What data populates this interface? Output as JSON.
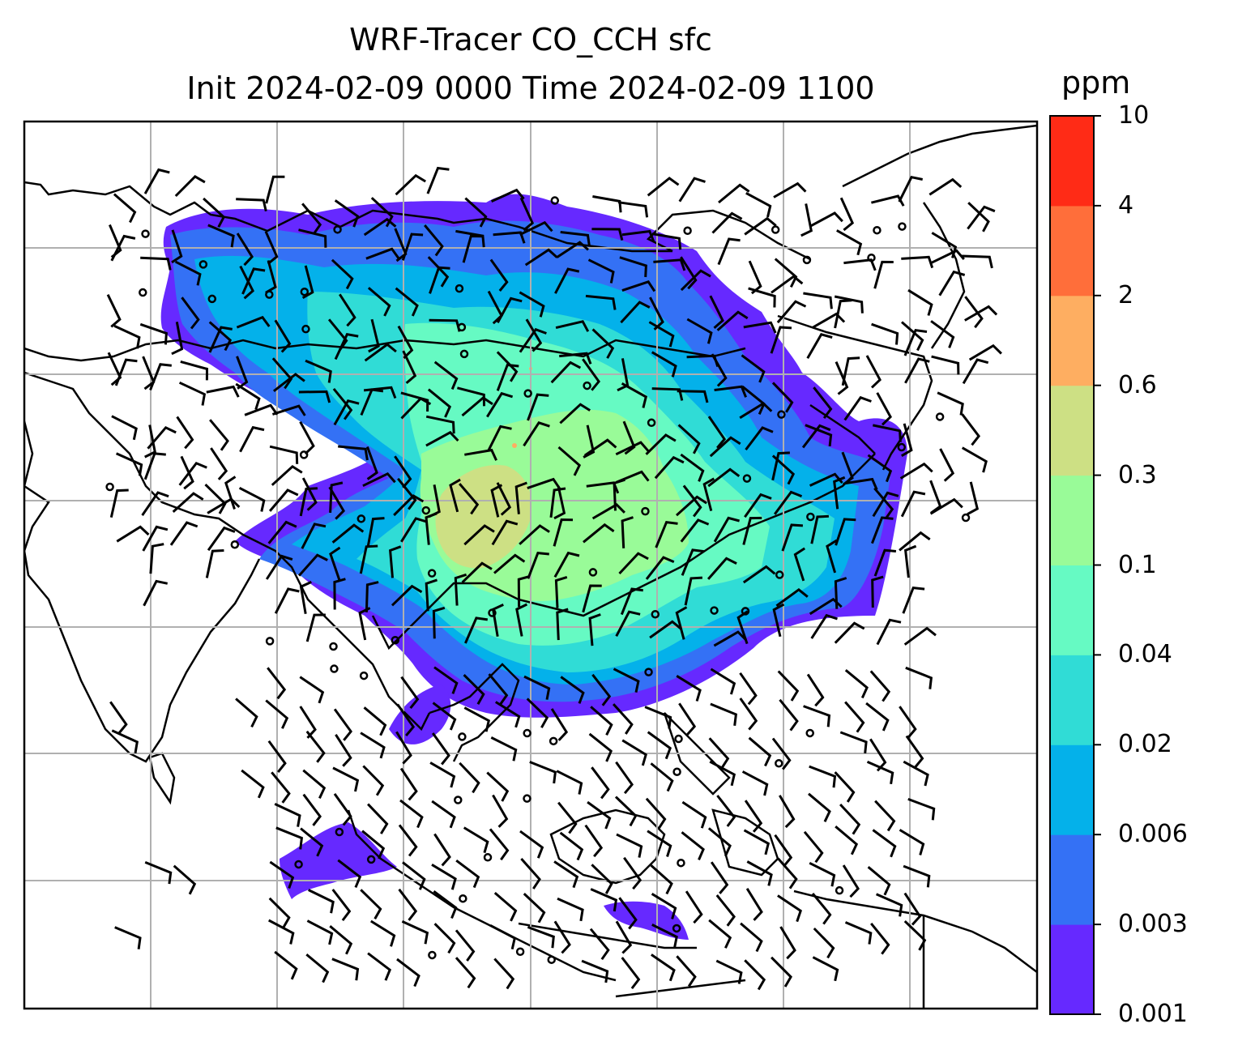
{
  "title": {
    "line1": "WRF-Tracer CO_CCH sfc",
    "line2": "Init 2024-02-09 0000 Time 2024-02-09 1100"
  },
  "colorbar": {
    "unit": "ppm",
    "levels": [
      "0.001",
      "0.003",
      "0.006",
      "0.02",
      "0.04",
      "0.1",
      "0.3",
      "0.6",
      "2",
      "4",
      "10"
    ],
    "colors": [
      "#6629ff",
      "#3471f5",
      "#04b1ea",
      "#30dcd6",
      "#66fac3",
      "#99fb98",
      "#cde084",
      "#feae61",
      "#ff6e3a",
      "#ff2b16"
    ]
  },
  "map": {
    "gridlines": true,
    "wind_barbs": true,
    "coastlines": true
  }
}
